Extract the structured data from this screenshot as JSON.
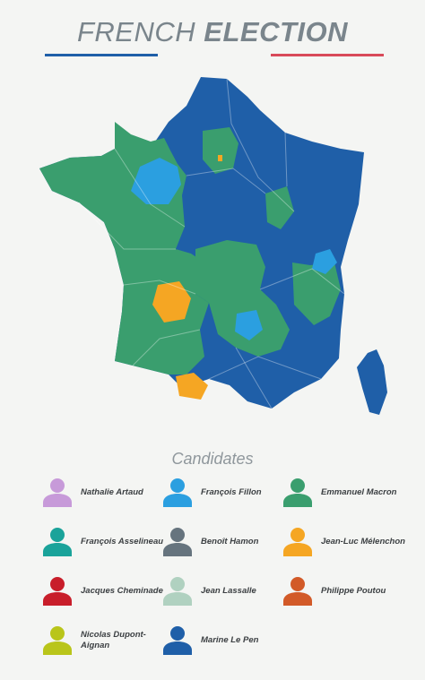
{
  "header": {
    "title_light": "FRENCH",
    "title_bold": "ELECTION",
    "rule_blue": "#1f5fa8",
    "rule_red": "#d94a5a"
  },
  "map": {
    "colors": {
      "le_pen": "#1f5fa8",
      "macron": "#3a9e6e",
      "fillon": "#2b9fe0",
      "melenchon": "#f5a623"
    }
  },
  "candidates_heading": "Candidates",
  "candidates": [
    {
      "name": "Nathalie Artaud",
      "color": "#c79ad9"
    },
    {
      "name": "François Fillon",
      "color": "#2b9fe0"
    },
    {
      "name": "Emmanuel Macron",
      "color": "#3a9e6e"
    },
    {
      "name": "François Asselineau",
      "color": "#1aa39a"
    },
    {
      "name": "Benoît Hamon",
      "color": "#66747e"
    },
    {
      "name": "Jean-Luc Mélenchon",
      "color": "#f5a623"
    },
    {
      "name": "Jacques Cheminade",
      "color": "#c81e2a"
    },
    {
      "name": "Jean Lassalle",
      "color": "#b0d1c0"
    },
    {
      "name": "Philippe Poutou",
      "color": "#d25a28"
    },
    {
      "name": "Nicolas Dupont-Aignan",
      "color": "#b9c51a"
    },
    {
      "name": "Marine Le Pen",
      "color": "#1f5fa8"
    }
  ]
}
